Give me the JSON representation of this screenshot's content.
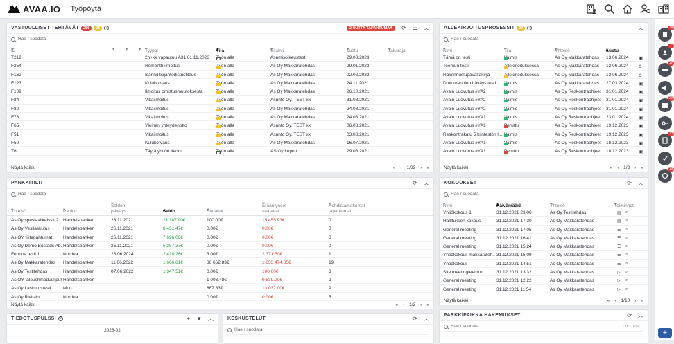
{
  "app": {
    "brand": "AVAA.IO",
    "page_title": "Työpöytä"
  },
  "search_placeholder": "Hae / suodata",
  "show_all": "Näytä kaikki",
  "tasks": {
    "title": "VASTUULLISET TEHTÄVÄT",
    "badge_red": "256",
    "badge_yellow": "26",
    "new_events": "2 UUTTA TAPAHTUMAA",
    "columns": [
      "ID",
      "Tyyppi",
      "Tila",
      "Sijainti",
      "Luotu",
      "Takaraja"
    ],
    "rows": [
      {
        "id": "T219",
        "arrow": false,
        "type": "2h+kk vapautuu A31 01.11.2023",
        "state": "Työn alla",
        "status": "outline",
        "loc": "Asumisoikeustesti",
        "created": "29.08.2023"
      },
      {
        "id": "F254",
        "arrow": false,
        "type": "Remontti-ilmoitus",
        "state": "Työn alla",
        "status": "yellow",
        "loc": "As Oy Makkaratehdas",
        "created": "29.01.2023"
      },
      {
        "id": "F162",
        "arrow": false,
        "type": "Isännöitsijäntodistustilaus",
        "state": "Työn alla",
        "status": "yellow",
        "loc": "As Oy Makkaratehdas",
        "created": "02.02.2022"
      },
      {
        "id": "F123",
        "arrow": false,
        "type": "Kulukorvaus",
        "state": "Työn alla",
        "status": "yellow",
        "loc": "As Oy Makkaratehdas",
        "created": "24.11.2021"
      },
      {
        "id": "F109",
        "arrow": false,
        "type": "Ilmoitus omistusmuutoksesta",
        "state": "Työn alla",
        "status": "yellow",
        "loc": "As Oy Makkaratehdas",
        "created": "26.10.2021"
      },
      {
        "id": "F84",
        "arrow": true,
        "type": "Vikailmoitus",
        "state": "Työn alla",
        "status": "yellow",
        "loc": "Asunto Oy. TEST xx",
        "created": "31.08.2021"
      },
      {
        "id": "F80",
        "arrow": true,
        "type": "Vikailmoitus",
        "state": "Työn alla",
        "status": "yellow",
        "loc": "As Oy Makkaratehdas",
        "created": "24.08.2021"
      },
      {
        "id": "F78",
        "arrow": true,
        "type": "Vikailmoitus",
        "state": "Työn alla",
        "status": "yellow",
        "loc": "As Oy Makkaratehdas",
        "created": "24.08.2021"
      },
      {
        "id": "F65",
        "arrow": true,
        "type": "Yleinen yhteydenotto",
        "state": "Työn alla",
        "status": "yellow",
        "loc": "Asunto Oy. TEST xx",
        "created": "06.08.2021"
      },
      {
        "id": "F51",
        "arrow": true,
        "type": "Vikailmoitus",
        "state": "Työn alla",
        "status": "yellow",
        "loc": "Asunto Oy. TEST xx",
        "created": "03.08.2021"
      },
      {
        "id": "F50",
        "arrow": false,
        "type": "Kulukorvaus",
        "state": "Työn alla",
        "status": "yellow",
        "loc": "As Oy Makkaratehdas",
        "created": "16.07.2021"
      },
      {
        "id": "T6",
        "arrow": false,
        "type": "Täytä yhtiön tiedot",
        "state": "Työn alla",
        "status": "outline",
        "loc": "AS Oy import",
        "created": "29.06.2021"
      }
    ],
    "page": "1/23"
  },
  "signatures": {
    "title": "ALLEKIRJOITUSPROSESSIT",
    "badge": "27",
    "columns": [
      "Nimi",
      "Tila",
      "Yhteisö",
      "Luotu"
    ],
    "rows": [
      {
        "name": "Tämä on testi",
        "status": "green",
        "state": "Valmis",
        "org": "As Oy Makkaratehdas",
        "date": "13.06.2024"
      },
      {
        "name": "Teemun testi",
        "status": "yellow",
        "state": "Allekirjoituksessa",
        "org": "As Oy Makkaratehdas",
        "date": "13.06.2024"
      },
      {
        "name": "Rakennuslupavaltakirja",
        "status": "yellow",
        "state": "Allekirjoituksessa",
        "org": "As Oy Makkaratehdas",
        "date": "13.06.2024"
      },
      {
        "name": "Dokumenttien häväys testi",
        "status": "green",
        "state": "Valmis",
        "org": "As Oy Makkaratehdas",
        "date": "27.03.2024"
      },
      {
        "name": "Avain Luovutus #YA2",
        "status": "green",
        "state": "Valmis",
        "org": "As Oy Reskontraohjeet",
        "date": "31.01.2024"
      },
      {
        "name": "Avain Luovutus #YA2",
        "status": "green",
        "state": "Valmis",
        "org": "As Oy Reskontraohjeet",
        "date": "31.01.2024"
      },
      {
        "name": "Avain Luovutus #YA2",
        "status": "green",
        "state": "Valmis",
        "org": "As Oy Reskontraohjeet",
        "date": "31.01.2024"
      },
      {
        "name": "Avain Luovutus #YA1",
        "status": "green",
        "state": "Valmis",
        "org": "As Oy Reskontraohjeet",
        "date": "23.01.2024"
      },
      {
        "name": "Avain Luovutus #YA1",
        "status": "red",
        "state": "Peruttu",
        "org": "As Oy Reskontraohjeet",
        "date": "19.12.2023"
      },
      {
        "name": "Reskontrakatu 5 kiintestön l...",
        "status": "green",
        "state": "Valmis",
        "org": "As Oy Reskontraohjeet",
        "date": "19.12.2023"
      },
      {
        "name": "Avain Luovutus #YA1",
        "status": "green",
        "state": "Valmis",
        "org": "As Oy Reskontraohjeet",
        "date": "18.12.2023"
      },
      {
        "name": "Avain Luovutus #YA1",
        "status": "red",
        "state": "Peruttu",
        "org": "As Oy Reskontraohjeet",
        "date": "18.12.2023"
      }
    ],
    "page": "1/2"
  },
  "bank": {
    "title": "PANKKITILIT",
    "columns": [
      "Yhteisö",
      "Pankki",
      "Saldon päiväys",
      "Saldo",
      "Ennakot",
      "Erääntyneet saatavat",
      "Kohdistamattomat tapahtumat"
    ],
    "rows": [
      {
        "org": "As Oy spesiaalikeissit 2",
        "bank": "Handelsbanken",
        "date": "26.11.2021",
        "balance": "21 187.90€",
        "bal_pos": true,
        "adv": "100.00€",
        "due": "15 455.93€",
        "due_neg": true,
        "un": "0"
      },
      {
        "org": "As Oy Vesilaskutus",
        "bank": "Handelsbanken",
        "date": "26.11.2021",
        "balance": "8 431.47€",
        "bal_pos": true,
        "adv": "0.00€",
        "due": "0.00€",
        "due_neg": true,
        "un": "0"
      },
      {
        "org": "As OY tilitapahtumat",
        "bank": "Handelsbanken",
        "date": "26.11.2021",
        "balance": "7 696.06€",
        "bal_pos": true,
        "adv": "0.00€",
        "due": "0.00€",
        "due_neg": true,
        "un": "0"
      },
      {
        "org": "As Oy Demo Bostads Ab...",
        "bank": "Handelsbanken",
        "date": "26.11.2021",
        "balance": "5 257.37€",
        "bal_pos": true,
        "adv": "0.00€",
        "due": "0.00€",
        "due_neg": true,
        "un": "0"
      },
      {
        "org": "Fennoa testi 1",
        "bank": "Nordea",
        "date": "26.06.2024",
        "balance": "2 428.28€",
        "bal_pos": true,
        "adv": "3.00€",
        "due": "2 371.50€",
        "due_neg": true,
        "un": "1"
      },
      {
        "org": "As Oy Makkaratehdas",
        "bank": "Handelsbanken",
        "date": "11.06.2022",
        "balance": "1 666.81€",
        "bal_pos": true,
        "adv": "86 662.83€",
        "due": "1 655 474.85€",
        "due_neg": true,
        "un": "19"
      },
      {
        "org": "As Oy Testitehdas",
        "bank": "Handelsbanken",
        "date": "07.06.2022",
        "balance": "1 347.51€",
        "bal_pos": true,
        "adv": "0.00€",
        "due": "100.00€",
        "due_neg": true,
        "un": "3"
      },
      {
        "org": "As OY taloushmoduulipuh...",
        "bank": "Handelsbanken",
        "date": "",
        "balance": "",
        "bal_pos": true,
        "adv": "1 008.48€",
        "due": "9 539.20€",
        "due_neg": true,
        "un": "9"
      },
      {
        "org": "As Oy Laskutustesti",
        "bank": "Muu",
        "date": "",
        "balance": "",
        "bal_pos": true,
        "adv": "867.83€",
        "due": "13 032.00€",
        "due_neg": true,
        "un": "9"
      },
      {
        "org": "As Oy Rivitalo",
        "bank": "Nordea",
        "date": "",
        "balance": "",
        "bal_pos": true,
        "adv": "0.00€",
        "due": "0.00€",
        "due_neg": true,
        "un": "5"
      }
    ],
    "page": "1/3"
  },
  "meetings": {
    "title": "KOKOUKSET",
    "columns": [
      "Nimi",
      "Päivämäärä",
      "Yhteisö",
      "Toiminnot"
    ],
    "rows": [
      {
        "name": "Yhtiökokous 1",
        "date": "31.12.2021 23:06",
        "org": "As Oy Testitehdas",
        "icon": "clipboard"
      },
      {
        "name": "Hallituksen kokous",
        "date": "31.12.2021 17:30",
        "org": "As Oy Makkaratehdas",
        "icon": "clipboard"
      },
      {
        "name": "General meeting",
        "date": "31.12.2021 17:05",
        "org": "As Oy Makkaratehdas",
        "icon": "list"
      },
      {
        "name": "General meeting",
        "date": "31.12.2021 16:41",
        "org": "As Oy Makkaratehdas",
        "icon": "list"
      },
      {
        "name": "General meeting",
        "date": "31.12.2021 15:24",
        "org": "As Oy Makkaratehdas",
        "icon": "list"
      },
      {
        "name": "Yhtiökokous makkarateh...",
        "date": "31.12.2021 15:09",
        "org": "As Oy Makkaratehdas",
        "icon": "list"
      },
      {
        "name": "Yhtiökokous",
        "date": "31.12.2021 14:51",
        "org": "As Oy Makkaratehdas",
        "icon": "list"
      },
      {
        "name": "Site meetingteemun",
        "date": "31.12.2021 13:32",
        "org": "As Oy Makkaratehdas",
        "icon": "play"
      },
      {
        "name": "General meeting",
        "date": "31.12.2021 12:22",
        "org": "As Oy Makkaratehdas",
        "icon": "play"
      },
      {
        "name": "General meeting",
        "date": "31.12.2021 11:54",
        "org": "As Oy Makkaratehdas",
        "icon": "play"
      }
    ],
    "page": "1/10"
  },
  "bulletin": {
    "title": "TIEDOTUSPULSSI",
    "month": "2026-02"
  },
  "chats": {
    "title": "KESKUSTELUT"
  },
  "parking": {
    "title": "PARKKIPAIKKA HAKEMUKSET",
    "partial": "Luo uusi..."
  },
  "rail_badges": [
    "14",
    "7",
    "17",
    "",
    "20",
    "",
    "13",
    "",
    "18"
  ],
  "colors": {
    "red": "#e0443c",
    "green": "#22a447",
    "yellow": "#f0c233"
  }
}
